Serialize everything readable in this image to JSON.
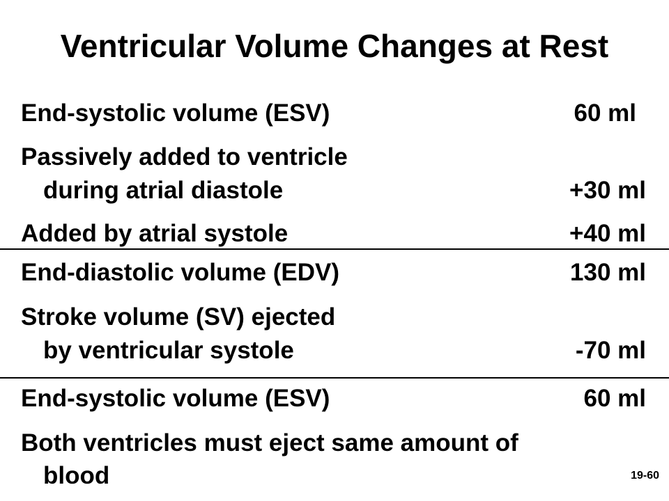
{
  "title": "Ventricular Volume Changes at Rest",
  "rows": [
    {
      "label": "End-systolic volume (ESV)",
      "value": "60 ml"
    },
    {
      "label_line1": "Passively added to ventricle",
      "label_line2": "during atrial diastole",
      "value": "+30 ml"
    },
    {
      "label": "Added by atrial systole",
      "value": "+40 ml"
    },
    {
      "label": "End-diastolic volume (EDV)",
      "value": "130 ml"
    },
    {
      "label_line1": "Stroke volume (SV) ejected",
      "label_line2": "by ventricular systole",
      "value": "-70 ml"
    },
    {
      "label": "End-systolic volume (ESV)",
      "value": "60 ml"
    }
  ],
  "note": {
    "line1": "Both ventricles must eject same amount of",
    "line2": "blood"
  },
  "slide_number": "19-60"
}
